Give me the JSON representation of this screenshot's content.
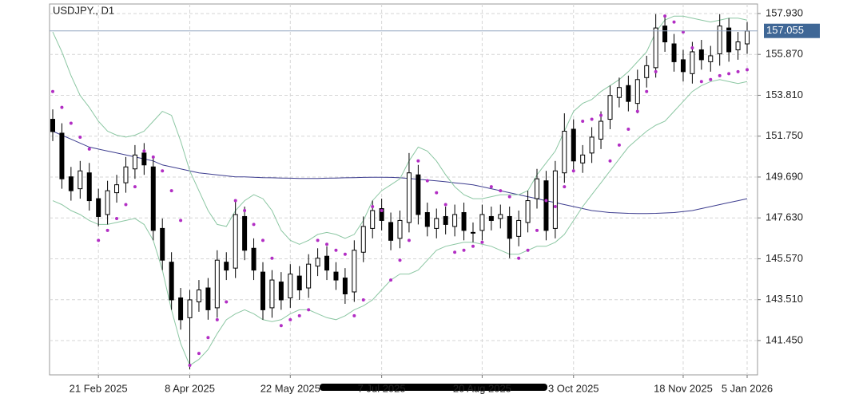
{
  "chart_data": {
    "type": "candlestick",
    "title": "USDJPY., D1",
    "categories": [
      null,
      null,
      null,
      null,
      null,
      "21 Feb 2025",
      null,
      null,
      null,
      null,
      null,
      null,
      null,
      null,
      null,
      "8 Apr 2025",
      null,
      null,
      null,
      null,
      null,
      null,
      null,
      null,
      null,
      null,
      "22 May 2025",
      null,
      null,
      null,
      null,
      null,
      null,
      null,
      null,
      null,
      "7 Jul 2025",
      null,
      null,
      null,
      null,
      null,
      null,
      null,
      null,
      null,
      null,
      "20 Aug 2025",
      null,
      null,
      null,
      null,
      null,
      null,
      null,
      null,
      null,
      "3 Oct 2025",
      null,
      null,
      null,
      null,
      null,
      null,
      null,
      null,
      null,
      null,
      null,
      "18 Nov 2025",
      null,
      null,
      null,
      null,
      null,
      null,
      "5 Jan 2026"
    ],
    "open": [
      152.6,
      151.9,
      149.7,
      149.1,
      149.9,
      148.6,
      147.8,
      148.9,
      149.4,
      150.1,
      150.9,
      150.2,
      147.1,
      145.4,
      143.6,
      142.6,
      143.4,
      144.1,
      143.1,
      145.4,
      145.1,
      147.7,
      146.1,
      144.9,
      143.1,
      144.4,
      143.6,
      144.7,
      144.1,
      145.2,
      145.7,
      144.9,
      144.6,
      143.9,
      145.9,
      147.1,
      148.1,
      147.4,
      146.6,
      147.4,
      149.8,
      147.9,
      147.1,
      147.7,
      147.2,
      147.9,
      146.9,
      147.0,
      147.7,
      147.6,
      147.7,
      146.7,
      147.4,
      148.6,
      149.5,
      147.1,
      149.9,
      152.1,
      150.4,
      150.9,
      151.6,
      152.6,
      153.7,
      154.3,
      153.4,
      154.7,
      155.2,
      157.3,
      156.4,
      155.6,
      154.9,
      156.1,
      155.5,
      155.9,
      157.2,
      156.1,
      156.4
    ],
    "high": [
      153.1,
      152.4,
      150.2,
      150.5,
      150.4,
      149.1,
      149.5,
      149.8,
      150.7,
      151.3,
      151.4,
      150.7,
      147.6,
      145.9,
      144.1,
      144.0,
      144.5,
      144.6,
      146.0,
      145.9,
      148.5,
      148.2,
      146.6,
      145.4,
      145.0,
      144.9,
      145.3,
      145.2,
      145.8,
      146.1,
      146.2,
      145.4,
      145.1,
      146.5,
      147.7,
      148.5,
      148.6,
      147.9,
      148.0,
      150.9,
      150.3,
      148.4,
      148.1,
      148.2,
      148.3,
      148.4,
      147.4,
      148.3,
      148.2,
      148.3,
      148.2,
      148.0,
      149.0,
      150.1,
      150.0,
      150.5,
      152.9,
      152.6,
      151.3,
      152.2,
      153.0,
      154.3,
      154.7,
      154.8,
      155.1,
      155.8,
      157.9,
      157.8,
      156.9,
      156.1,
      156.5,
      156.6,
      156.3,
      157.9,
      157.7,
      157.0,
      157.5
    ],
    "low": [
      151.5,
      149.1,
      148.5,
      148.6,
      148.0,
      147.2,
      147.3,
      148.4,
      148.9,
      149.6,
      149.8,
      146.5,
      145.0,
      143.0,
      142.0,
      140.0,
      142.9,
      142.5,
      142.6,
      144.5,
      144.6,
      145.5,
      144.5,
      142.5,
      142.6,
      143.0,
      143.1,
      143.5,
      143.6,
      144.7,
      144.5,
      144.0,
      143.3,
      143.4,
      145.4,
      146.6,
      147.0,
      146.0,
      146.1,
      146.9,
      147.3,
      146.7,
      146.6,
      146.8,
      146.7,
      146.5,
      146.4,
      146.5,
      147.0,
      147.1,
      145.6,
      146.2,
      146.9,
      148.1,
      146.5,
      146.6,
      149.4,
      150.0,
      149.9,
      150.4,
      151.1,
      152.1,
      153.2,
      153.0,
      152.9,
      154.2,
      154.7,
      156.0,
      155.0,
      154.5,
      154.4,
      155.1,
      155.0,
      155.3,
      155.5,
      155.6,
      155.9
    ],
    "close": [
      151.98,
      149.6,
      149.0,
      150.0,
      148.5,
      147.7,
      149.0,
      149.3,
      150.2,
      150.8,
      150.3,
      147.0,
      145.5,
      143.5,
      142.5,
      143.5,
      144.0,
      143.0,
      145.5,
      145.0,
      147.8,
      146.0,
      145.0,
      143.0,
      144.5,
      143.5,
      144.8,
      144.0,
      145.3,
      145.6,
      145.0,
      144.5,
      143.8,
      146.0,
      147.2,
      148.0,
      147.5,
      146.5,
      147.5,
      149.9,
      147.8,
      147.2,
      147.6,
      147.3,
      147.8,
      147.0,
      146.9,
      147.8,
      147.5,
      147.8,
      146.6,
      147.5,
      148.5,
      149.6,
      147.0,
      150.0,
      152.0,
      150.5,
      150.8,
      151.7,
      152.5,
      153.8,
      154.2,
      153.5,
      154.6,
      155.3,
      157.2,
      156.5,
      155.5,
      155.0,
      156.0,
      155.6,
      155.8,
      157.3,
      156.0,
      156.5,
      157.05
    ],
    "up_color": "#ffffff",
    "down_color": "#000000",
    "outline_color": "#000000",
    "overlays": [
      {
        "kind": "line",
        "color": "#3d3d8f",
        "values": [
          152.0,
          151.8,
          151.6,
          151.4,
          151.2,
          151.1,
          151.0,
          150.9,
          150.8,
          150.7,
          150.6,
          150.5,
          150.3,
          150.2,
          150.1,
          150.0,
          149.9,
          149.85,
          149.8,
          149.75,
          149.7,
          149.7,
          149.68,
          149.66,
          149.65,
          149.64,
          149.63,
          149.62,
          149.62,
          149.62,
          149.63,
          149.64,
          149.65,
          149.66,
          149.67,
          149.68,
          149.68,
          149.67,
          149.65,
          149.62,
          149.58,
          149.54,
          149.5,
          149.45,
          149.4,
          149.35,
          149.3,
          149.2,
          149.1,
          149.0,
          148.9,
          148.8,
          148.7,
          148.6,
          148.5,
          148.4,
          148.3,
          148.2,
          148.1,
          148.0,
          147.95,
          147.9,
          147.88,
          147.86,
          147.85,
          147.85,
          147.86,
          147.88,
          147.9,
          147.95,
          148.0,
          148.1,
          148.2,
          148.3,
          148.4,
          148.5,
          148.6
        ]
      },
      {
        "kind": "line",
        "color": "#8cc7a3",
        "values": [
          157.0,
          156.0,
          154.8,
          153.8,
          153.2,
          152.5,
          152.0,
          151.8,
          151.7,
          151.8,
          152.0,
          152.5,
          153.0,
          152.8,
          151.5,
          150.0,
          149.0,
          148.0,
          147.3,
          147.2,
          148.0,
          148.5,
          148.8,
          148.6,
          148.0,
          147.0,
          146.5,
          146.3,
          146.5,
          146.8,
          146.9,
          146.8,
          146.6,
          146.8,
          147.5,
          148.5,
          149.0,
          149.3,
          149.6,
          150.5,
          151.2,
          151.0,
          150.5,
          149.8,
          149.2,
          148.8,
          148.6,
          148.6,
          148.7,
          148.8,
          148.8,
          148.8,
          149.0,
          149.8,
          150.4,
          151.0,
          152.0,
          153.0,
          153.4,
          153.6,
          154.0,
          154.3,
          154.6,
          155.0,
          155.5,
          156.0,
          157.0,
          157.6,
          157.8,
          157.8,
          157.7,
          157.6,
          157.5,
          157.6,
          157.7,
          157.7,
          157.6
        ]
      },
      {
        "kind": "line",
        "color": "#8cc7a3",
        "values": [
          148.5,
          148.3,
          148.0,
          147.8,
          147.5,
          147.3,
          147.3,
          147.4,
          147.5,
          147.6,
          147.3,
          146.5,
          145.0,
          143.0,
          141.3,
          140.2,
          140.5,
          141.0,
          141.8,
          142.5,
          142.8,
          143.0,
          142.8,
          142.5,
          142.4,
          142.5,
          142.8,
          143.0,
          143.0,
          142.8,
          142.6,
          142.5,
          142.7,
          143.0,
          143.2,
          143.5,
          144.0,
          144.5,
          144.8,
          144.8,
          145.0,
          145.5,
          146.0,
          146.2,
          146.3,
          146.4,
          146.4,
          146.3,
          146.2,
          146.0,
          145.8,
          145.8,
          146.0,
          146.2,
          146.2,
          146.4,
          146.8,
          147.5,
          148.2,
          148.8,
          149.4,
          150.0,
          150.6,
          151.2,
          151.6,
          152.0,
          152.3,
          152.5,
          153.0,
          153.5,
          154.0,
          154.3,
          154.5,
          154.6,
          154.5,
          154.4,
          154.5
        ]
      },
      {
        "kind": "dots",
        "color": "#b22ec4",
        "values": [
          154.0,
          153.2,
          152.4,
          151.7,
          151.1,
          146.5,
          147.0,
          147.6,
          148.3,
          149.2,
          151.0,
          150.7,
          150.0,
          149.0,
          147.5,
          140.2,
          140.8,
          141.6,
          142.5,
          143.4,
          148.5,
          148.0,
          147.3,
          146.5,
          145.6,
          142.2,
          142.5,
          142.7,
          143.0,
          146.5,
          146.3,
          146.0,
          145.8,
          142.7,
          143.5,
          148.2,
          148.0,
          144.5,
          145.5,
          146.5,
          150.5,
          149.5,
          148.9,
          148.3,
          145.9,
          146.0,
          146.2,
          146.4,
          149.2,
          149.0,
          148.7,
          145.6,
          146.0,
          147.0,
          148.5,
          148.2,
          149.2,
          150.0,
          152.5,
          152.6,
          152.8,
          150.5,
          151.3,
          152.1,
          153.0,
          154.0,
          155.0,
          157.8,
          157.5,
          157.0,
          156.2,
          154.5,
          154.6,
          154.8,
          154.9,
          155.0,
          155.1
        ]
      }
    ],
    "last_price": {
      "value": 157.055,
      "label": "157.055"
    },
    "last_price_color": "#3f6796",
    "ylim": [
      139.72,
      158.41
    ],
    "yticks": [
      {
        "value": 141.45,
        "label": "141.450"
      },
      {
        "value": 143.51,
        "label": "143.510"
      },
      {
        "value": 145.57,
        "label": "145.570"
      },
      {
        "value": 147.63,
        "label": "147.630"
      },
      {
        "value": 149.69,
        "label": "149.690"
      },
      {
        "value": 151.75,
        "label": "151.750"
      },
      {
        "value": 153.81,
        "label": "153.810"
      },
      {
        "value": 155.87,
        "label": "155.870"
      },
      {
        "value": 157.93,
        "label": "157.930"
      }
    ],
    "grid": true
  }
}
